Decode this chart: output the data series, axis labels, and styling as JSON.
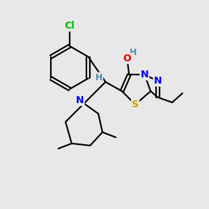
{
  "bg_color": "#e8e8e8",
  "bond_color": "#000000",
  "bond_width": 1.6,
  "atom_colors": {
    "Cl": "#00bb00",
    "N": "#0000ee",
    "O": "#ee0000",
    "S": "#bbaa00",
    "H": "#5588aa",
    "C": "#000000"
  },
  "font_size_main": 10,
  "font_size_h": 9
}
